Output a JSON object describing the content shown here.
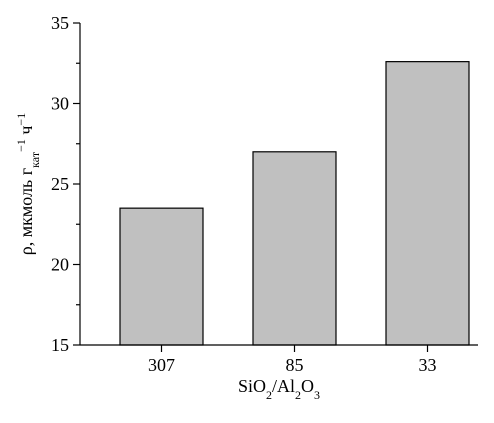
{
  "chart_data": {
    "type": "bar",
    "categories": [
      "307",
      "85",
      "33"
    ],
    "values": [
      23.5,
      27,
      32.6
    ],
    "color": "#c0c0c0",
    "ylim": [
      15,
      35
    ],
    "yticks": [
      15,
      20,
      25,
      30,
      35
    ],
    "yminor": [
      17.5,
      22.5,
      27.5,
      32.5
    ],
    "xlabel": [
      {
        "text": "SiO"
      },
      {
        "sub": "2"
      },
      {
        "text": "/Al"
      },
      {
        "sub": "2"
      },
      {
        "text": "O"
      },
      {
        "sub": "3"
      }
    ],
    "ylabel": [
      {
        "text": "ρ, мкмоль г"
      },
      {
        "sub": "кат"
      },
      {
        "sup": "−1"
      },
      {
        "text": " ч"
      },
      {
        "sup": "−1"
      }
    ]
  }
}
